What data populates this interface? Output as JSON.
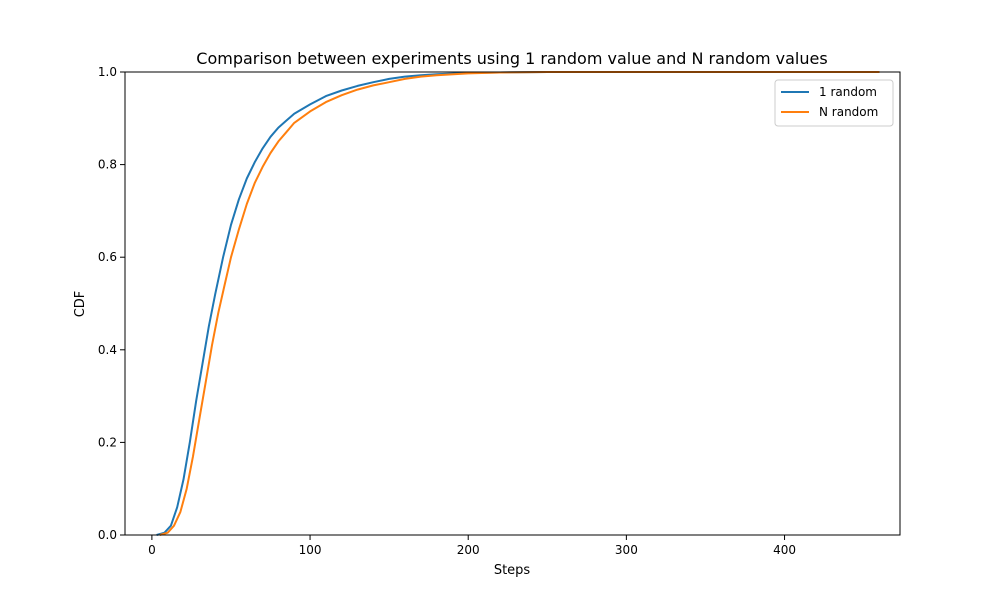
{
  "chart_data": {
    "type": "line",
    "title": "Comparison between experiments using 1 random value and N random values",
    "xlabel": "Steps",
    "ylabel": "CDF",
    "xlim": [
      -17,
      473
    ],
    "ylim": [
      0,
      1
    ],
    "xticks": [
      0,
      100,
      200,
      300,
      400
    ],
    "xtick_labels": [
      "0",
      "100",
      "200",
      "300",
      "400"
    ],
    "yticks": [
      0,
      0.2,
      0.4,
      0.6,
      0.8,
      1.0
    ],
    "ytick_labels": [
      "0.0",
      "0.2",
      "0.4",
      "0.6",
      "0.8",
      "1.0"
    ],
    "grid": false,
    "legend": "top-right",
    "series": [
      {
        "name": "1 random",
        "color": "#1f77b4",
        "x": [
          3,
          8,
          12,
          16,
          20,
          24,
          28,
          32,
          36,
          40,
          45,
          50,
          55,
          60,
          65,
          70,
          75,
          80,
          85,
          90,
          100,
          110,
          120,
          130,
          140,
          150,
          160,
          170,
          180,
          200,
          220,
          250,
          300,
          460
        ],
        "y": [
          0.0,
          0.005,
          0.02,
          0.06,
          0.12,
          0.2,
          0.29,
          0.37,
          0.45,
          0.52,
          0.6,
          0.67,
          0.725,
          0.77,
          0.805,
          0.835,
          0.86,
          0.88,
          0.895,
          0.91,
          0.93,
          0.948,
          0.96,
          0.97,
          0.978,
          0.985,
          0.99,
          0.993,
          0.995,
          0.998,
          0.999,
          1.0,
          1.0,
          1.0
        ]
      },
      {
        "name": "N random",
        "color": "#ff7f0e",
        "x": [
          5,
          10,
          14,
          18,
          22,
          26,
          30,
          34,
          38,
          42,
          46,
          50,
          55,
          60,
          65,
          70,
          75,
          80,
          85,
          90,
          100,
          110,
          120,
          130,
          140,
          150,
          160,
          170,
          180,
          200,
          220,
          250,
          300,
          460
        ],
        "y": [
          0.0,
          0.005,
          0.02,
          0.05,
          0.1,
          0.17,
          0.25,
          0.33,
          0.41,
          0.48,
          0.54,
          0.6,
          0.66,
          0.715,
          0.76,
          0.795,
          0.825,
          0.85,
          0.87,
          0.89,
          0.915,
          0.935,
          0.95,
          0.962,
          0.971,
          0.978,
          0.985,
          0.99,
          0.993,
          0.997,
          0.999,
          1.0,
          1.0,
          1.0
        ]
      }
    ]
  }
}
